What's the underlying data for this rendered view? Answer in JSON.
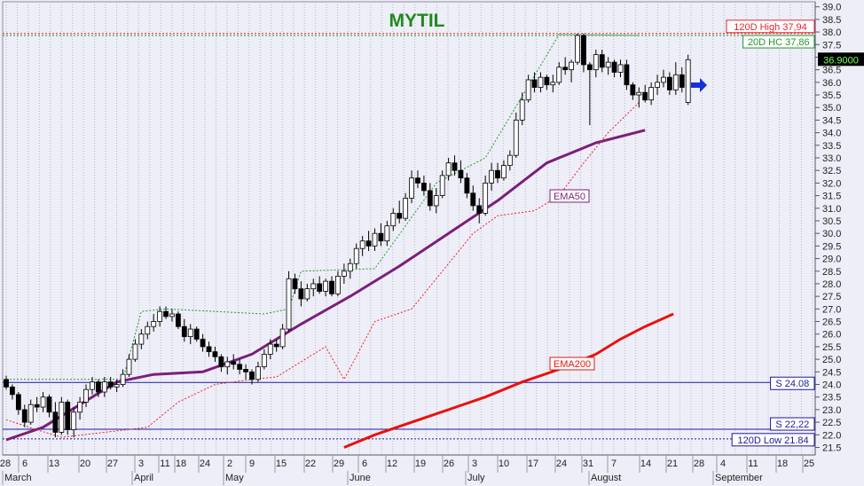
{
  "chart_data": {
    "type": "candlestick",
    "title": "MYTIL",
    "y_axis": {
      "position": "right",
      "ylim": [
        21.2,
        39.2
      ],
      "ticks": [
        "21.5",
        "22.0",
        "22.5",
        "23.0",
        "23.5",
        "24.0",
        "24.5",
        "25.0",
        "25.5",
        "26.0",
        "26.5",
        "27.0",
        "27.5",
        "28.0",
        "28.5",
        "29.0",
        "29.5",
        "30.0",
        "30.5",
        "31.0",
        "31.5",
        "32.0",
        "32.5",
        "33.0",
        "33.5",
        "34.0",
        "34.5",
        "35.0",
        "35.5",
        "36.0",
        "36.5",
        "37.0",
        "37.5",
        "38.0",
        "38.5",
        "39.0"
      ]
    },
    "x_axis": {
      "day_labels": [
        "28",
        "6",
        "13",
        "20",
        "27",
        "3",
        "11",
        "18",
        "24",
        "2",
        "9",
        "15",
        "22",
        "29",
        "6",
        "12",
        "19",
        "26",
        "3",
        "10",
        "17",
        "24",
        "31",
        "7",
        "14",
        "21",
        "28",
        "4",
        "11",
        "18",
        "25"
      ],
      "month_labels": [
        "March",
        "April",
        "May",
        "June",
        "July",
        "August",
        "September"
      ]
    },
    "last_price": "36.9000",
    "levels": [
      {
        "name": "120D High",
        "label": "120D High 37,94",
        "value": 37.94,
        "color": "#e8232a",
        "style": "dotted"
      },
      {
        "name": "20D HC",
        "label": "20D HC 37,86",
        "value": 37.86,
        "color": "#1e9a2a",
        "style": "dotted"
      },
      {
        "name": "S 24.08",
        "label": "S 24.08",
        "value": 24.08,
        "color": "#1a1a9c",
        "style": "solid"
      },
      {
        "name": "S 22,22",
        "label": "S 22,22",
        "value": 22.22,
        "color": "#1a1a9c",
        "style": "solid"
      },
      {
        "name": "120D Low",
        "label": "120D Low 21.84",
        "value": 21.84,
        "color": "#1a1a9c",
        "style": "dotted"
      }
    ],
    "series": [
      {
        "name": "EMA50",
        "label": "EMA50",
        "color": "#7a1f7a",
        "values": [
          [
            0,
            21.8
          ],
          [
            30,
            22.3
          ],
          [
            60,
            23.2
          ],
          [
            90,
            24.1
          ],
          [
            120,
            24.4
          ],
          [
            160,
            24.5
          ],
          [
            200,
            25.2
          ],
          [
            240,
            26.4
          ],
          [
            280,
            27.5
          ],
          [
            320,
            28.7
          ],
          [
            360,
            30.0
          ],
          [
            400,
            31.3
          ],
          [
            440,
            32.8
          ],
          [
            480,
            33.6
          ],
          [
            520,
            34.1
          ]
        ]
      },
      {
        "name": "EMA200",
        "label": "EMA200",
        "color": "#e8120f",
        "values": [
          [
            275,
            21.5
          ],
          [
            300,
            22.0
          ],
          [
            330,
            22.5
          ],
          [
            360,
            23.0
          ],
          [
            390,
            23.5
          ],
          [
            420,
            24.1
          ],
          [
            450,
            24.6
          ],
          [
            480,
            25.2
          ],
          [
            500,
            25.8
          ],
          [
            520,
            26.3
          ],
          [
            543,
            26.8
          ]
        ]
      },
      {
        "name": "20D low channel",
        "color": "#e8232a",
        "style": "dotted",
        "values": [
          [
            0,
            22.6
          ],
          [
            25,
            22.2
          ],
          [
            45,
            21.9
          ],
          [
            115,
            22.3
          ],
          [
            140,
            23.3
          ],
          [
            170,
            24.0
          ],
          [
            200,
            24.2
          ],
          [
            220,
            24.3
          ],
          [
            260,
            25.5
          ],
          [
            275,
            24.2
          ],
          [
            300,
            26.5
          ],
          [
            330,
            27.0
          ],
          [
            355,
            28.5
          ],
          [
            380,
            30.0
          ],
          [
            400,
            30.7
          ],
          [
            430,
            30.9
          ],
          [
            450,
            31.5
          ],
          [
            470,
            32.8
          ],
          [
            490,
            34.0
          ],
          [
            515,
            35.2
          ]
        ]
      },
      {
        "name": "20D high channel",
        "color": "#1e9a2a",
        "style": "dotted",
        "values": [
          [
            0,
            24.2
          ],
          [
            95,
            24.2
          ],
          [
            110,
            26.9
          ],
          [
            130,
            27.0
          ],
          [
            170,
            26.9
          ],
          [
            210,
            26.8
          ],
          [
            230,
            27.0
          ],
          [
            240,
            28.5
          ],
          [
            300,
            28.6
          ],
          [
            350,
            32.0
          ],
          [
            390,
            33.0
          ],
          [
            450,
            37.9
          ],
          [
            515,
            37.86
          ]
        ]
      }
    ],
    "candles": [
      {
        "t": 0,
        "o": 24.2,
        "h": 24.35,
        "l": 23.8,
        "c": 23.9
      },
      {
        "t": 5,
        "o": 23.9,
        "h": 24.0,
        "l": 23.4,
        "c": 23.6
      },
      {
        "t": 10,
        "o": 23.6,
        "h": 23.7,
        "l": 22.8,
        "c": 23.0
      },
      {
        "t": 15,
        "o": 23.0,
        "h": 23.2,
        "l": 22.3,
        "c": 22.5
      },
      {
        "t": 20,
        "o": 22.5,
        "h": 23.4,
        "l": 22.4,
        "c": 23.2
      },
      {
        "t": 25,
        "o": 23.2,
        "h": 23.5,
        "l": 22.9,
        "c": 23.1
      },
      {
        "t": 30,
        "o": 23.1,
        "h": 23.7,
        "l": 22.9,
        "c": 23.5
      },
      {
        "t": 35,
        "o": 23.5,
        "h": 23.6,
        "l": 22.7,
        "c": 22.9
      },
      {
        "t": 40,
        "o": 22.9,
        "h": 23.3,
        "l": 21.9,
        "c": 22.1
      },
      {
        "t": 45,
        "o": 22.1,
        "h": 23.5,
        "l": 22.0,
        "c": 23.3
      },
      {
        "t": 50,
        "o": 23.3,
        "h": 23.4,
        "l": 22.0,
        "c": 22.2
      },
      {
        "t": 55,
        "o": 22.2,
        "h": 23.1,
        "l": 21.9,
        "c": 22.9
      },
      {
        "t": 60,
        "o": 22.9,
        "h": 23.5,
        "l": 22.6,
        "c": 23.3
      },
      {
        "t": 65,
        "o": 23.3,
        "h": 24.0,
        "l": 23.1,
        "c": 23.8
      },
      {
        "t": 70,
        "o": 23.8,
        "h": 24.3,
        "l": 23.6,
        "c": 24.1
      },
      {
        "t": 75,
        "o": 24.1,
        "h": 24.2,
        "l": 23.5,
        "c": 23.7
      },
      {
        "t": 80,
        "o": 23.7,
        "h": 24.3,
        "l": 23.5,
        "c": 24.1
      },
      {
        "t": 85,
        "o": 24.1,
        "h": 24.3,
        "l": 23.8,
        "c": 23.9
      },
      {
        "t": 90,
        "o": 23.9,
        "h": 24.2,
        "l": 23.7,
        "c": 24.0
      },
      {
        "t": 95,
        "o": 24.0,
        "h": 24.6,
        "l": 23.9,
        "c": 24.4
      },
      {
        "t": 100,
        "o": 24.4,
        "h": 25.2,
        "l": 24.3,
        "c": 25.0
      },
      {
        "t": 105,
        "o": 25.0,
        "h": 25.8,
        "l": 24.9,
        "c": 25.6
      },
      {
        "t": 110,
        "o": 25.6,
        "h": 26.2,
        "l": 25.4,
        "c": 26.0
      },
      {
        "t": 115,
        "o": 26.0,
        "h": 26.5,
        "l": 25.8,
        "c": 26.3
      },
      {
        "t": 120,
        "o": 26.3,
        "h": 26.8,
        "l": 26.1,
        "c": 26.5
      },
      {
        "t": 125,
        "o": 26.5,
        "h": 27.1,
        "l": 26.3,
        "c": 26.9
      },
      {
        "t": 130,
        "o": 26.9,
        "h": 27.1,
        "l": 26.6,
        "c": 26.7
      },
      {
        "t": 135,
        "o": 26.7,
        "h": 27.0,
        "l": 26.5,
        "c": 26.8
      },
      {
        "t": 140,
        "o": 26.8,
        "h": 26.9,
        "l": 26.2,
        "c": 26.3
      },
      {
        "t": 145,
        "o": 26.3,
        "h": 26.6,
        "l": 25.7,
        "c": 25.9
      },
      {
        "t": 150,
        "o": 25.9,
        "h": 26.4,
        "l": 25.6,
        "c": 26.2
      },
      {
        "t": 155,
        "o": 26.2,
        "h": 26.3,
        "l": 25.7,
        "c": 25.8
      },
      {
        "t": 160,
        "o": 25.8,
        "h": 26.0,
        "l": 25.3,
        "c": 25.5
      },
      {
        "t": 165,
        "o": 25.5,
        "h": 25.7,
        "l": 25.1,
        "c": 25.3
      },
      {
        "t": 170,
        "o": 25.3,
        "h": 25.5,
        "l": 24.9,
        "c": 25.1
      },
      {
        "t": 175,
        "o": 25.1,
        "h": 25.2,
        "l": 24.5,
        "c": 24.7
      },
      {
        "t": 180,
        "o": 24.7,
        "h": 25.1,
        "l": 24.4,
        "c": 24.9
      },
      {
        "t": 185,
        "o": 24.9,
        "h": 25.2,
        "l": 24.6,
        "c": 24.8
      },
      {
        "t": 190,
        "o": 24.8,
        "h": 25.0,
        "l": 24.4,
        "c": 24.6
      },
      {
        "t": 195,
        "o": 24.6,
        "h": 24.8,
        "l": 24.2,
        "c": 24.5
      },
      {
        "t": 200,
        "o": 24.5,
        "h": 24.6,
        "l": 24.0,
        "c": 24.2
      },
      {
        "t": 205,
        "o": 24.2,
        "h": 24.9,
        "l": 24.1,
        "c": 24.7
      },
      {
        "t": 210,
        "o": 24.7,
        "h": 25.4,
        "l": 24.6,
        "c": 25.2
      },
      {
        "t": 215,
        "o": 25.2,
        "h": 25.8,
        "l": 25.0,
        "c": 25.6
      },
      {
        "t": 220,
        "o": 25.6,
        "h": 25.8,
        "l": 25.3,
        "c": 25.5
      },
      {
        "t": 225,
        "o": 25.5,
        "h": 26.4,
        "l": 25.4,
        "c": 26.2
      },
      {
        "t": 230,
        "o": 26.2,
        "h": 28.5,
        "l": 26.1,
        "c": 28.2
      },
      {
        "t": 235,
        "o": 28.2,
        "h": 28.4,
        "l": 27.6,
        "c": 27.8
      },
      {
        "t": 240,
        "o": 27.8,
        "h": 28.1,
        "l": 27.1,
        "c": 27.4
      },
      {
        "t": 245,
        "o": 27.4,
        "h": 28.0,
        "l": 27.3,
        "c": 27.8
      },
      {
        "t": 250,
        "o": 27.8,
        "h": 28.2,
        "l": 27.5,
        "c": 28.0
      },
      {
        "t": 255,
        "o": 28.0,
        "h": 28.3,
        "l": 27.6,
        "c": 27.7
      },
      {
        "t": 260,
        "o": 27.7,
        "h": 28.2,
        "l": 27.5,
        "c": 28.1
      },
      {
        "t": 265,
        "o": 28.1,
        "h": 28.3,
        "l": 27.5,
        "c": 27.6
      },
      {
        "t": 270,
        "o": 27.6,
        "h": 28.5,
        "l": 27.5,
        "c": 28.3
      },
      {
        "t": 275,
        "o": 28.3,
        "h": 28.8,
        "l": 28.0,
        "c": 28.5
      },
      {
        "t": 280,
        "o": 28.5,
        "h": 29.0,
        "l": 28.2,
        "c": 28.8
      },
      {
        "t": 285,
        "o": 28.8,
        "h": 29.6,
        "l": 28.6,
        "c": 29.4
      },
      {
        "t": 290,
        "o": 29.4,
        "h": 29.9,
        "l": 29.1,
        "c": 29.7
      },
      {
        "t": 295,
        "o": 29.7,
        "h": 30.1,
        "l": 29.3,
        "c": 29.5
      },
      {
        "t": 300,
        "o": 29.5,
        "h": 30.2,
        "l": 29.3,
        "c": 30.0
      },
      {
        "t": 305,
        "o": 30.0,
        "h": 30.4,
        "l": 29.5,
        "c": 29.7
      },
      {
        "t": 310,
        "o": 29.7,
        "h": 30.5,
        "l": 29.5,
        "c": 30.3
      },
      {
        "t": 315,
        "o": 30.3,
        "h": 31.0,
        "l": 30.1,
        "c": 30.8
      },
      {
        "t": 320,
        "o": 30.8,
        "h": 31.3,
        "l": 30.4,
        "c": 30.6
      },
      {
        "t": 325,
        "o": 30.6,
        "h": 31.6,
        "l": 30.5,
        "c": 31.4
      },
      {
        "t": 330,
        "o": 31.4,
        "h": 32.5,
        "l": 31.2,
        "c": 32.2
      },
      {
        "t": 335,
        "o": 32.2,
        "h": 32.5,
        "l": 31.8,
        "c": 32.0
      },
      {
        "t": 340,
        "o": 32.0,
        "h": 32.3,
        "l": 31.5,
        "c": 31.7
      },
      {
        "t": 345,
        "o": 31.7,
        "h": 32.0,
        "l": 30.9,
        "c": 31.1
      },
      {
        "t": 350,
        "o": 31.1,
        "h": 31.8,
        "l": 30.8,
        "c": 31.5
      },
      {
        "t": 355,
        "o": 31.5,
        "h": 32.5,
        "l": 31.4,
        "c": 32.3
      },
      {
        "t": 360,
        "o": 32.3,
        "h": 33.0,
        "l": 32.1,
        "c": 32.8
      },
      {
        "t": 365,
        "o": 32.8,
        "h": 33.1,
        "l": 32.3,
        "c": 32.5
      },
      {
        "t": 370,
        "o": 32.5,
        "h": 32.9,
        "l": 32.0,
        "c": 32.2
      },
      {
        "t": 375,
        "o": 32.2,
        "h": 32.4,
        "l": 31.4,
        "c": 31.6
      },
      {
        "t": 380,
        "o": 31.6,
        "h": 31.9,
        "l": 30.9,
        "c": 31.1
      },
      {
        "t": 385,
        "o": 31.1,
        "h": 31.4,
        "l": 30.4,
        "c": 30.8
      },
      {
        "t": 390,
        "o": 30.8,
        "h": 32.3,
        "l": 30.7,
        "c": 32.0
      },
      {
        "t": 395,
        "o": 32.0,
        "h": 32.8,
        "l": 31.7,
        "c": 32.5
      },
      {
        "t": 400,
        "o": 32.5,
        "h": 32.8,
        "l": 32.0,
        "c": 32.2
      },
      {
        "t": 405,
        "o": 32.2,
        "h": 32.9,
        "l": 32.1,
        "c": 32.7
      },
      {
        "t": 410,
        "o": 32.7,
        "h": 33.3,
        "l": 32.5,
        "c": 33.1
      },
      {
        "t": 415,
        "o": 33.1,
        "h": 34.8,
        "l": 33.0,
        "c": 34.5
      },
      {
        "t": 420,
        "o": 34.5,
        "h": 35.6,
        "l": 34.3,
        "c": 35.3
      },
      {
        "t": 425,
        "o": 35.3,
        "h": 36.3,
        "l": 35.2,
        "c": 36.1
      },
      {
        "t": 430,
        "o": 36.1,
        "h": 36.4,
        "l": 35.6,
        "c": 35.8
      },
      {
        "t": 435,
        "o": 35.8,
        "h": 36.4,
        "l": 35.6,
        "c": 36.2
      },
      {
        "t": 440,
        "o": 36.2,
        "h": 36.3,
        "l": 35.7,
        "c": 35.9
      },
      {
        "t": 445,
        "o": 35.9,
        "h": 36.3,
        "l": 35.6,
        "c": 36.0
      },
      {
        "t": 450,
        "o": 36.0,
        "h": 36.8,
        "l": 35.9,
        "c": 36.6
      },
      {
        "t": 455,
        "o": 36.6,
        "h": 37.0,
        "l": 36.3,
        "c": 36.5
      },
      {
        "t": 460,
        "o": 36.5,
        "h": 36.9,
        "l": 36.0,
        "c": 36.8
      },
      {
        "t": 465,
        "o": 36.8,
        "h": 37.94,
        "l": 36.7,
        "c": 37.86
      },
      {
        "t": 470,
        "o": 37.86,
        "h": 37.94,
        "l": 36.4,
        "c": 36.7
      },
      {
        "t": 475,
        "o": 36.7,
        "h": 36.8,
        "l": 34.3,
        "c": 36.5
      },
      {
        "t": 480,
        "o": 36.5,
        "h": 37.3,
        "l": 36.2,
        "c": 37.1
      },
      {
        "t": 485,
        "o": 37.1,
        "h": 37.3,
        "l": 36.4,
        "c": 36.6
      },
      {
        "t": 490,
        "o": 36.6,
        "h": 37.0,
        "l": 36.3,
        "c": 36.8
      },
      {
        "t": 495,
        "o": 36.8,
        "h": 36.9,
        "l": 36.2,
        "c": 36.4
      },
      {
        "t": 500,
        "o": 36.4,
        "h": 36.9,
        "l": 36.2,
        "c": 36.7
      },
      {
        "t": 505,
        "o": 36.7,
        "h": 36.9,
        "l": 35.7,
        "c": 35.9
      },
      {
        "t": 510,
        "o": 35.9,
        "h": 36.0,
        "l": 35.3,
        "c": 35.5
      },
      {
        "t": 515,
        "o": 35.5,
        "h": 35.8,
        "l": 35.0,
        "c": 35.6
      },
      {
        "t": 520,
        "o": 35.6,
        "h": 35.9,
        "l": 35.2,
        "c": 35.3
      },
      {
        "t": 525,
        "o": 35.3,
        "h": 36.0,
        "l": 35.1,
        "c": 35.8
      },
      {
        "t": 530,
        "o": 35.8,
        "h": 36.3,
        "l": 35.5,
        "c": 36.0
      },
      {
        "t": 535,
        "o": 36.0,
        "h": 36.5,
        "l": 35.8,
        "c": 36.2
      },
      {
        "t": 540,
        "o": 36.2,
        "h": 36.4,
        "l": 35.5,
        "c": 35.7
      },
      {
        "t": 545,
        "o": 35.7,
        "h": 36.8,
        "l": 35.5,
        "c": 36.3
      },
      {
        "t": 550,
        "o": 36.3,
        "h": 36.6,
        "l": 35.6,
        "c": 35.8
      },
      {
        "t": 555,
        "o": 35.2,
        "h": 37.1,
        "l": 35.1,
        "c": 36.9
      }
    ],
    "grid": true,
    "colors": {
      "background": "#eeeef8",
      "grid": "#b6b6c4",
      "bull": "#ffffff",
      "bear": "#000000",
      "arrow": "#1632d6",
      "title": "#1e8a1e"
    }
  }
}
